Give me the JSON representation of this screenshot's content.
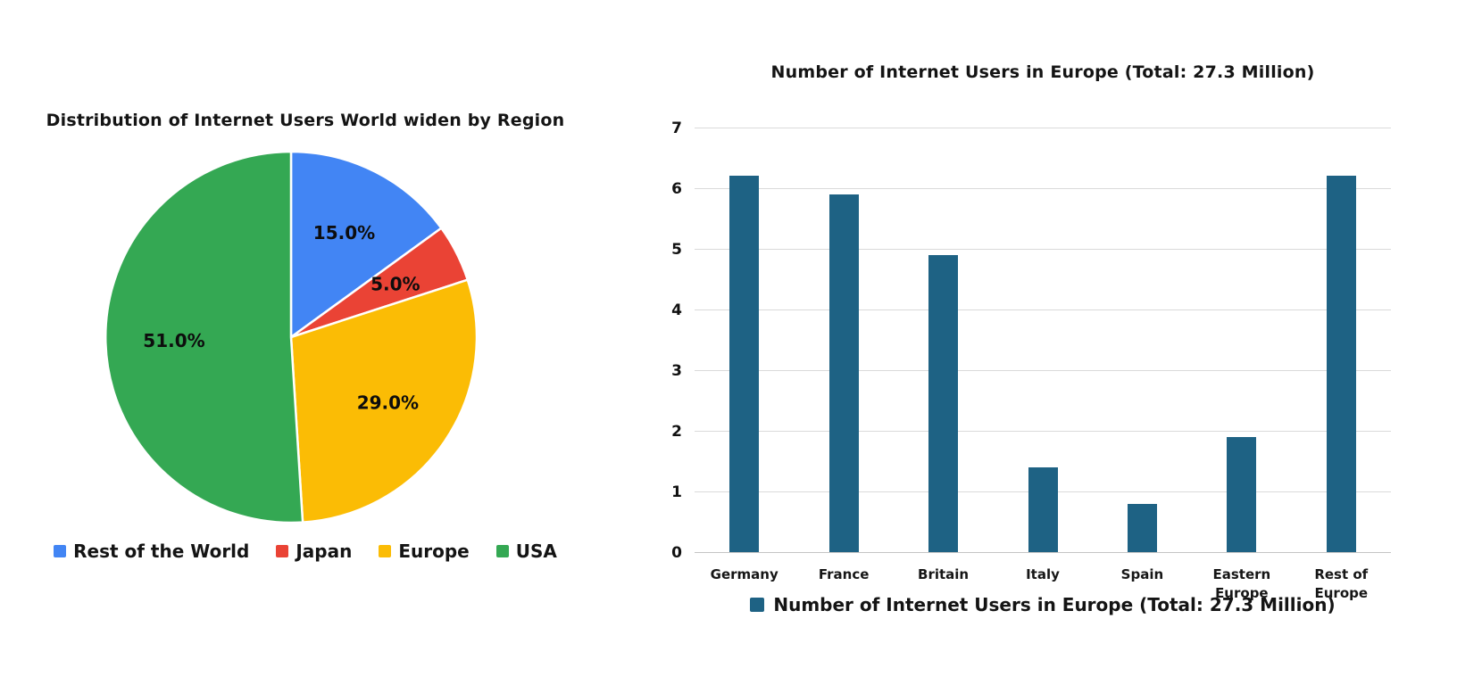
{
  "page": {
    "background": "#ffffff"
  },
  "chart_data": [
    {
      "type": "pie",
      "title": "Distribution of Internet Users World widen by Region",
      "labels": [
        "Rest of the World",
        "Japan",
        "Europe",
        "USA"
      ],
      "values": [
        15.0,
        5.0,
        29.0,
        51.0
      ],
      "slice_labels": [
        "15.0%",
        "5.0%",
        "29.0%",
        "51.0%"
      ],
      "colors": [
        "#4285F4",
        "#EA4335",
        "#FBBC05",
        "#34A853"
      ],
      "start_angle": "top",
      "direction": "clockwise",
      "legend_position": "bottom",
      "label_color": "#0d0d0d",
      "slice_border_color": "#ffffff"
    },
    {
      "type": "bar",
      "title": "Number of Internet Users in Europe (Total: 27.3 Million)",
      "categories": [
        "Germany",
        "France",
        "Britain",
        "Italy",
        "Spain",
        "Eastern Europe",
        "Rest of Europe"
      ],
      "values": [
        6.2,
        5.9,
        4.9,
        1.4,
        0.8,
        1.9,
        6.2
      ],
      "xlabel": "",
      "ylabel": "",
      "ylim": [
        0,
        7
      ],
      "y_ticks": [
        0,
        1,
        2,
        3,
        4,
        5,
        6,
        7
      ],
      "grid": true,
      "gridline_color": "#dadada",
      "bar_color": "#1E6284",
      "legend_label": "Number of Internet Users in Europe (Total: 27.3 Million)",
      "legend_position": "bottom"
    }
  ]
}
